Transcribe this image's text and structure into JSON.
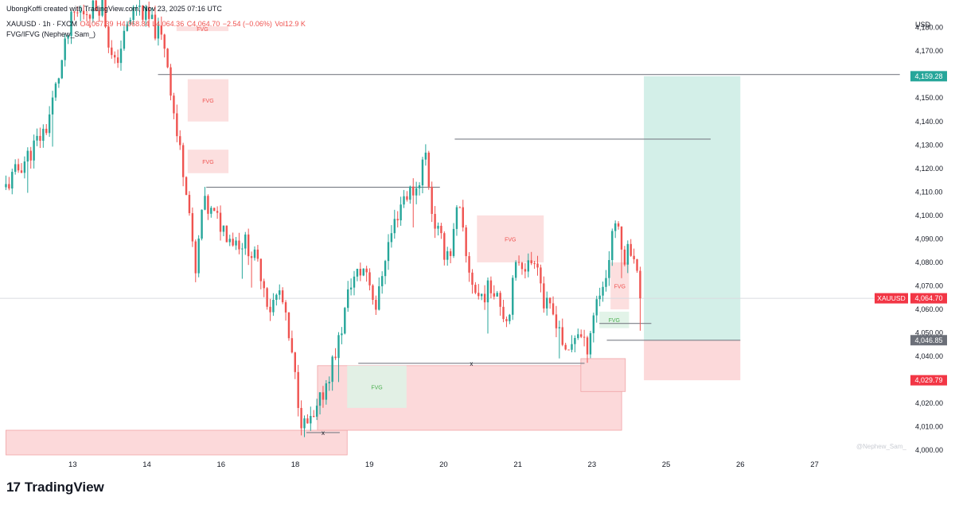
{
  "header": {
    "created_by": "UbongKoffi created with TradingView.com, Nov 23, 2025 07:16 UTC",
    "symbol_line": "XAUUSD · 1h · FXCM",
    "open": "O4,067.39",
    "high": "H4,068.84",
    "low": "L4,064.36",
    "close": "C4,064.70",
    "change": "−2.54 (−0.06%)",
    "volume": "Vol12.9 K",
    "indicator": "FVG/IFVG (Nephew_Sam_)"
  },
  "branding": {
    "logo_mark": "17",
    "logo_text": "TradingView"
  },
  "watermark": "@Nephew_Sam_",
  "colors": {
    "up": "#26a69a",
    "down": "#ef5350",
    "fvg_bear_fill": "#fcdcdc",
    "fvg_bull_fill": "#dff2e6",
    "target_fill": "#d3efe8",
    "stop_fill": "#fcd9da",
    "level_line": "#7b7f87",
    "price_tag_green": "#26a69a",
    "price_tag_red": "#f23645",
    "price_tag_gray": "#6b6f78"
  },
  "chart_data": {
    "type": "candlestick",
    "symbol": "XAUUSD",
    "timeframe": "1h",
    "currency": "USD",
    "ylim": [
      3998,
      4187
    ],
    "y_ticks": [
      4000,
      4010,
      4020,
      4030,
      4040,
      4050,
      4060,
      4070,
      4080,
      4090,
      4100,
      4110,
      4120,
      4130,
      4140,
      4150,
      4160,
      4170,
      4180
    ],
    "y_tick_labels": [
      "4,000.00",
      "4,010.00",
      "4,020.00",
      "4,030.00",
      "4,040.00",
      "4,050.00",
      "4,060.00",
      "4,070.00",
      "4,080.00",
      "4,090.00",
      "4,100.00",
      "4,110.00",
      "4,120.00",
      "4,130.00",
      "4,140.00",
      "4,150.00",
      "4,160.00",
      "4,170.00",
      "4,180.00"
    ],
    "x_ticks": [
      {
        "label": "13",
        "t": 0.9
      },
      {
        "label": "14",
        "t": 1.9
      },
      {
        "label": "16",
        "t": 2.9
      },
      {
        "label": "18",
        "t": 3.9
      },
      {
        "label": "19",
        "t": 4.9
      },
      {
        "label": "20",
        "t": 5.9
      },
      {
        "label": "21",
        "t": 6.9
      },
      {
        "label": "23",
        "t": 7.9
      },
      {
        "label": "25",
        "t": 8.9
      },
      {
        "label": "26",
        "t": 9.9
      },
      {
        "label": "27",
        "t": 10.9
      }
    ],
    "candle_anchors": [
      [
        0.0,
        4112
      ],
      [
        0.35,
        4128
      ],
      [
        0.55,
        4138
      ],
      [
        0.9,
        4185
      ],
      [
        1.3,
        4190
      ],
      [
        1.45,
        4162
      ],
      [
        1.55,
        4172
      ],
      [
        1.75,
        4190
      ],
      [
        2.0,
        4180
      ],
      [
        2.15,
        4172
      ],
      [
        2.3,
        4135
      ],
      [
        2.45,
        4110
      ],
      [
        2.55,
        4072
      ],
      [
        2.65,
        4105
      ],
      [
        2.85,
        4098
      ],
      [
        3.05,
        4090
      ],
      [
        3.25,
        4088
      ],
      [
        3.45,
        4075
      ],
      [
        3.55,
        4060
      ],
      [
        3.7,
        4068
      ],
      [
        3.85,
        4040
      ],
      [
        4.0,
        4010
      ],
      [
        4.15,
        4012
      ],
      [
        4.35,
        4032
      ],
      [
        4.5,
        4048
      ],
      [
        4.65,
        4072
      ],
      [
        4.85,
        4078
      ],
      [
        5.0,
        4060
      ],
      [
        5.1,
        4082
      ],
      [
        5.25,
        4098
      ],
      [
        5.35,
        4108
      ],
      [
        5.55,
        4112
      ],
      [
        5.65,
        4128
      ],
      [
        5.75,
        4100
      ],
      [
        5.9,
        4085
      ],
      [
        6.0,
        4085
      ],
      [
        6.1,
        4105
      ],
      [
        6.2,
        4082
      ],
      [
        6.35,
        4065
      ],
      [
        6.6,
        4070
      ],
      [
        6.75,
        4055
      ],
      [
        6.9,
        4082
      ],
      [
        7.05,
        4078
      ],
      [
        7.15,
        4085
      ],
      [
        7.25,
        4062
      ],
      [
        7.45,
        4055
      ],
      [
        7.55,
        4038
      ],
      [
        7.7,
        4052
      ],
      [
        7.82,
        4042
      ],
      [
        7.95,
        4063
      ],
      [
        8.1,
        4075
      ],
      [
        8.2,
        4100
      ],
      [
        8.32,
        4082
      ],
      [
        8.45,
        4088
      ],
      [
        8.55,
        4065
      ]
    ],
    "last_price": 4064.7,
    "price_tags": [
      {
        "label": "4,159.28",
        "value": 4159.28,
        "style": "green"
      },
      {
        "label": "4,064.70",
        "value": 4064.7,
        "style": "red",
        "symbol": "XAUUSD"
      },
      {
        "label": "4,046.85",
        "value": 4046.85,
        "style": "gray"
      },
      {
        "label": "4,029.79",
        "value": 4029.79,
        "style": "red"
      }
    ],
    "position": {
      "type": "long",
      "entry": 4046.85,
      "target": 4159.28,
      "stop": 4029.79,
      "t0": 8.6,
      "t1": 9.9
    },
    "levels": [
      {
        "y": 4160,
        "t0": 2.05,
        "t1": 12.05
      },
      {
        "y": 4132.5,
        "t0": 6.05,
        "t1": 9.5
      },
      {
        "y": 4112,
        "t0": 2.7,
        "t1": 5.85
      },
      {
        "y": 4046.85,
        "t0": 8.1,
        "t1": 9.9
      },
      {
        "y": 4054,
        "t0": 8.0,
        "t1": 8.7
      },
      {
        "y": 4037,
        "t0": 4.75,
        "t1": 7.8,
        "mark": "x"
      },
      {
        "y": 4007.5,
        "t0": 4.05,
        "t1": 4.5,
        "mark": "x"
      }
    ],
    "fvg_zones": [
      {
        "label": "FVG",
        "kind": "bear",
        "t0": 2.3,
        "t1": 3.0,
        "y0": 4178.5,
        "y1": 4180.5
      },
      {
        "label": "FVG",
        "kind": "bear",
        "t0": 2.45,
        "t1": 3.0,
        "y0": 4140,
        "y1": 4158
      },
      {
        "label": "FVG",
        "kind": "bear",
        "t0": 2.45,
        "t1": 3.0,
        "y0": 4118,
        "y1": 4128
      },
      {
        "label": "FVG",
        "kind": "bear",
        "t0": 6.35,
        "t1": 7.25,
        "y0": 4080,
        "y1": 4100
      },
      {
        "label": "FVG",
        "kind": "bear",
        "t0": 8.15,
        "t1": 8.4,
        "y0": 4060,
        "y1": 4080
      },
      {
        "label": "FVG",
        "kind": "bull",
        "t0": 4.6,
        "t1": 5.4,
        "y0": 4018,
        "y1": 4036
      },
      {
        "label": "FVG",
        "kind": "bull",
        "t0": 8.0,
        "t1": 8.4,
        "y0": 4052,
        "y1": 4059
      }
    ],
    "demand_zones": [
      {
        "t0": 0.0,
        "t1": 4.6,
        "y0": 3998,
        "y1": 4008.5
      },
      {
        "t0": 4.2,
        "t1": 8.3,
        "y0": 4008.5,
        "y1": 4036
      },
      {
        "t0": 7.75,
        "t1": 8.35,
        "y0": 4025,
        "y1": 4039
      }
    ]
  }
}
